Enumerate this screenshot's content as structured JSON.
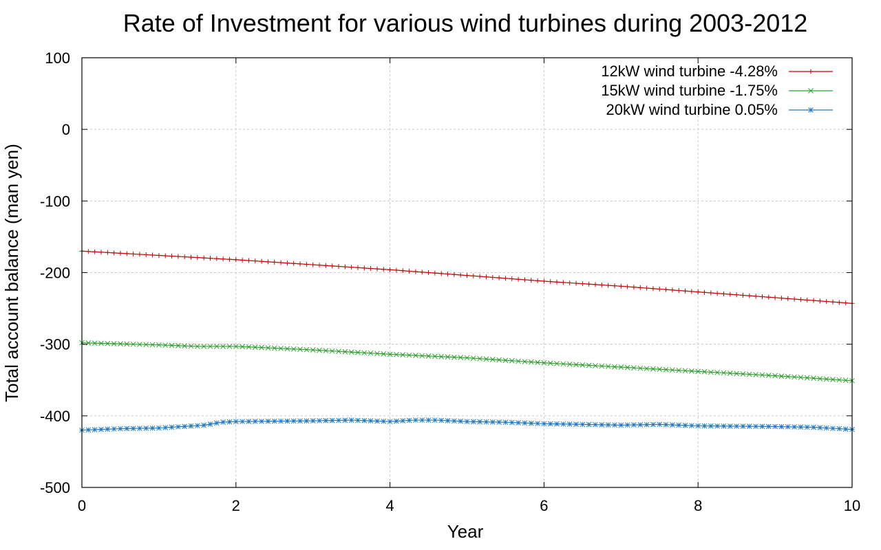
{
  "chart_data": {
    "type": "line",
    "title": "Rate of Investment for various wind turbines during 2003-2012",
    "xlabel": "Year",
    "ylabel": "Total account balance (man yen)",
    "xlim": [
      0,
      10
    ],
    "ylim": [
      -500,
      100
    ],
    "xticks": [
      0,
      2,
      4,
      6,
      8,
      10
    ],
    "yticks": [
      100,
      0,
      -100,
      -200,
      -300,
      -400,
      -500
    ],
    "grid": true,
    "legend_position": "top-right",
    "series": [
      {
        "name": "12kW wind turbine -4.28%",
        "color": "#c00000",
        "marker": "plus",
        "points": [
          [
            0,
            -170
          ],
          [
            1,
            -176
          ],
          [
            2,
            -182
          ],
          [
            3,
            -189
          ],
          [
            4,
            -196
          ],
          [
            5,
            -204
          ],
          [
            6,
            -212
          ],
          [
            7,
            -219
          ],
          [
            8,
            -227
          ],
          [
            9,
            -235
          ],
          [
            10,
            -243
          ]
        ]
      },
      {
        "name": "15kW wind turbine -1.75%",
        "color": "#2ca02c",
        "marker": "cross",
        "points": [
          [
            0,
            -298
          ],
          [
            1,
            -301
          ],
          [
            1.5,
            -303
          ],
          [
            2,
            -303
          ],
          [
            3,
            -308
          ],
          [
            4,
            -314
          ],
          [
            5,
            -319
          ],
          [
            6,
            -326
          ],
          [
            7,
            -332
          ],
          [
            8,
            -338
          ],
          [
            9,
            -344
          ],
          [
            10,
            -351
          ]
        ]
      },
      {
        "name": "20kW wind turbine 0.05%",
        "color": "#1f77c4",
        "marker": "star",
        "points": [
          [
            0,
            -420
          ],
          [
            0.5,
            -418
          ],
          [
            1,
            -417
          ],
          [
            1.6,
            -413
          ],
          [
            1.8,
            -409
          ],
          [
            2,
            -408
          ],
          [
            3,
            -407
          ],
          [
            3.5,
            -406
          ],
          [
            4,
            -408
          ],
          [
            4.3,
            -406
          ],
          [
            4.6,
            -406
          ],
          [
            5,
            -408
          ],
          [
            5.5,
            -409
          ],
          [
            6,
            -411
          ],
          [
            7,
            -413
          ],
          [
            7.5,
            -412
          ],
          [
            8,
            -414
          ],
          [
            9,
            -415
          ],
          [
            9.5,
            -416
          ],
          [
            10,
            -419
          ]
        ]
      }
    ]
  }
}
